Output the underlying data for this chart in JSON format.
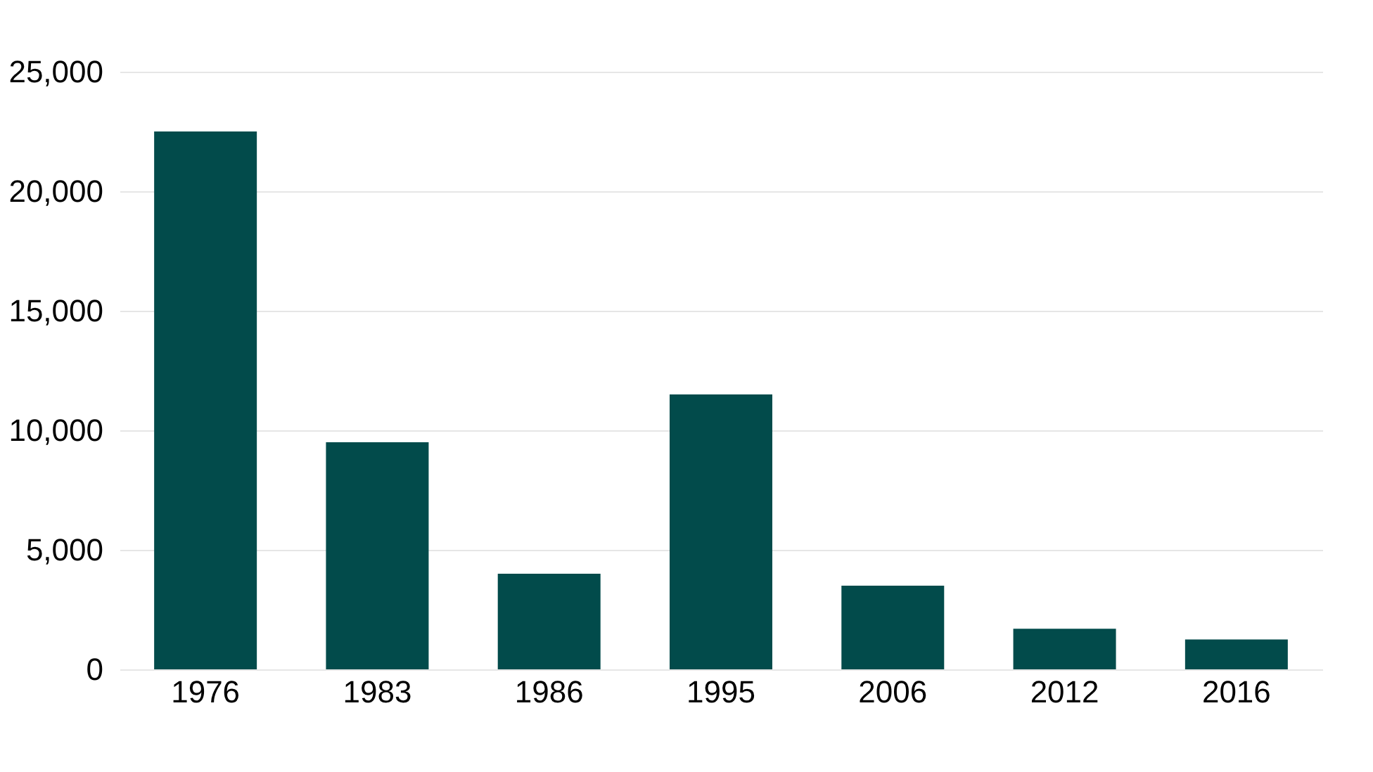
{
  "chart_data": {
    "type": "bar",
    "categories": [
      "1976",
      "1983",
      "1986",
      "1995",
      "2006",
      "2012",
      "2016"
    ],
    "values": [
      22500,
      9500,
      4000,
      11500,
      3500,
      1700,
      1250
    ],
    "color": "#024b4b",
    "ylim": [
      0,
      25000
    ],
    "yticks": [
      0,
      {
        "value": 5000,
        "label": "5,000"
      },
      {
        "value": 10000,
        "label": "10,000"
      },
      {
        "value": 15000,
        "label": "15,000"
      },
      {
        "value": 20000,
        "label": "20,000"
      },
      {
        "value": 25000,
        "label": "25,000"
      }
    ],
    "grid": "y"
  }
}
